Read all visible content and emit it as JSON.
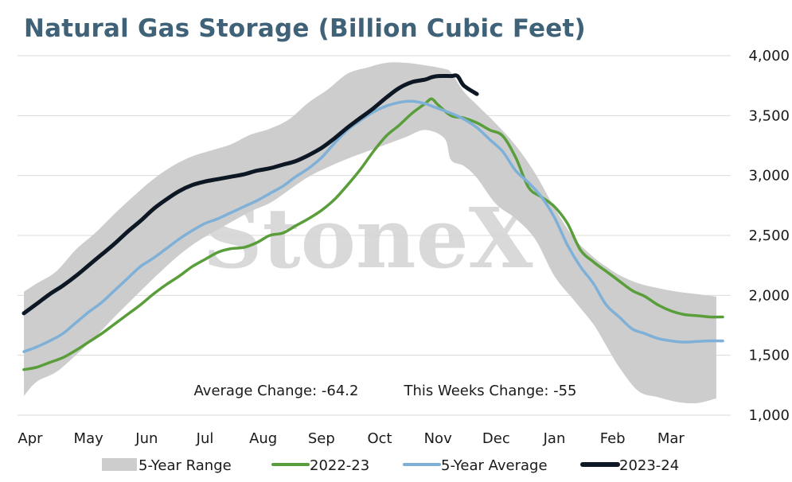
{
  "chart_data": {
    "type": "line",
    "title": "Natural Gas Storage (Billion Cubic Feet)",
    "x_tick_labels": [
      "Apr",
      "May",
      "Jun",
      "Jul",
      "Aug",
      "Sep",
      "Oct",
      "Nov",
      "Dec",
      "Jan",
      "Feb",
      "Mar"
    ],
    "x_tick_weeks": [
      0,
      9,
      18,
      27,
      36,
      45,
      54,
      63,
      72,
      81,
      90,
      99
    ],
    "num_weeks": 109,
    "ylim": [
      1000,
      4000
    ],
    "y_ticks": [
      1000,
      1500,
      2000,
      2500,
      3000,
      3500,
      4000
    ],
    "y_tick_labels": [
      "1,000",
      "1,500",
      "2,000",
      "2,500",
      "3,000",
      "3,500",
      "4,000"
    ],
    "grid": true,
    "y_axis_side": "right",
    "legend_position": "bottom",
    "watermark": "StoneX",
    "annotations": [
      {
        "text": "Average Change: -64.2"
      },
      {
        "text": "This Weeks Change: -55"
      }
    ],
    "series": [
      {
        "name": "5-Year Range",
        "kind": "band",
        "color": "#cdcdcd",
        "x": [
          0,
          2,
          5,
          8,
          11,
          14,
          17,
          20,
          23,
          26,
          29,
          32,
          35,
          38,
          41,
          44,
          47,
          50,
          53,
          56,
          59,
          62,
          65,
          66,
          68,
          70,
          73,
          76,
          79,
          82,
          85,
          88,
          90,
          92,
          95,
          98,
          101,
          104,
          107
        ],
        "upper": [
          2030,
          2100,
          2200,
          2380,
          2520,
          2680,
          2830,
          2970,
          3080,
          3160,
          3210,
          3260,
          3340,
          3390,
          3470,
          3610,
          3720,
          3850,
          3900,
          3940,
          3940,
          3920,
          3890,
          3860,
          3700,
          3590,
          3430,
          3250,
          3020,
          2730,
          2480,
          2320,
          2240,
          2170,
          2100,
          2060,
          2030,
          2010,
          1990
        ],
        "lower": [
          1160,
          1280,
          1360,
          1500,
          1650,
          1820,
          1980,
          2140,
          2290,
          2420,
          2520,
          2610,
          2700,
          2770,
          2880,
          2990,
          3070,
          3140,
          3200,
          3260,
          3320,
          3380,
          3310,
          3130,
          3080,
          2980,
          2760,
          2640,
          2470,
          2160,
          1960,
          1760,
          1580,
          1400,
          1200,
          1150,
          1110,
          1100,
          1140
        ]
      },
      {
        "name": "2022-23",
        "kind": "line",
        "color": "#5a9e3c",
        "x": [
          0,
          2,
          4,
          6,
          8,
          10,
          12,
          14,
          16,
          18,
          20,
          22,
          24,
          26,
          28,
          30,
          32,
          34,
          36,
          38,
          40,
          42,
          44,
          46,
          48,
          50,
          52,
          54,
          56,
          58,
          60,
          62,
          63,
          64,
          66,
          68,
          70,
          72,
          74,
          76,
          78,
          80,
          82,
          84,
          86,
          88,
          90,
          92,
          94,
          96,
          98,
          100,
          102,
          104,
          106,
          108
        ],
        "values": [
          1380,
          1400,
          1440,
          1480,
          1540,
          1610,
          1680,
          1760,
          1840,
          1920,
          2010,
          2090,
          2160,
          2240,
          2300,
          2360,
          2390,
          2400,
          2440,
          2500,
          2520,
          2580,
          2640,
          2710,
          2800,
          2920,
          3050,
          3200,
          3330,
          3420,
          3520,
          3600,
          3640,
          3590,
          3500,
          3480,
          3440,
          3380,
          3330,
          3150,
          2900,
          2820,
          2740,
          2600,
          2380,
          2280,
          2200,
          2120,
          2040,
          1990,
          1920,
          1870,
          1840,
          1830,
          1820,
          1820
        ]
      },
      {
        "name": "5-Year Average",
        "kind": "line",
        "color": "#7eb0d8",
        "x": [
          0,
          2,
          4,
          6,
          8,
          10,
          12,
          14,
          16,
          18,
          20,
          22,
          24,
          26,
          28,
          30,
          32,
          34,
          36,
          38,
          40,
          42,
          44,
          46,
          48,
          50,
          52,
          54,
          56,
          58,
          60,
          62,
          63,
          64,
          66,
          68,
          70,
          72,
          74,
          76,
          78,
          80,
          82,
          84,
          86,
          88,
          90,
          92,
          94,
          96,
          98,
          100,
          102,
          104,
          106,
          108
        ],
        "values": [
          1530,
          1570,
          1620,
          1680,
          1770,
          1860,
          1940,
          2040,
          2140,
          2240,
          2310,
          2390,
          2470,
          2540,
          2600,
          2640,
          2690,
          2740,
          2790,
          2850,
          2910,
          2990,
          3060,
          3150,
          3270,
          3380,
          3460,
          3530,
          3580,
          3610,
          3620,
          3600,
          3580,
          3560,
          3520,
          3470,
          3400,
          3300,
          3200,
          3040,
          2940,
          2820,
          2650,
          2420,
          2240,
          2100,
          1920,
          1820,
          1720,
          1680,
          1640,
          1620,
          1610,
          1615,
          1620,
          1620
        ]
      },
      {
        "name": "2023-24",
        "kind": "line",
        "color": "#0d1824",
        "x": [
          0,
          2,
          4,
          6,
          8,
          10,
          12,
          14,
          16,
          18,
          20,
          22,
          24,
          26,
          28,
          30,
          32,
          34,
          36,
          38,
          40,
          42,
          44,
          46,
          48,
          50,
          52,
          54,
          56,
          58,
          60,
          62,
          63,
          64,
          66,
          67,
          68,
          70
        ],
        "values": [
          1850,
          1930,
          2010,
          2080,
          2160,
          2250,
          2340,
          2430,
          2530,
          2620,
          2720,
          2800,
          2870,
          2920,
          2950,
          2970,
          2990,
          3010,
          3040,
          3060,
          3090,
          3120,
          3170,
          3230,
          3310,
          3400,
          3480,
          3560,
          3650,
          3730,
          3780,
          3800,
          3820,
          3830,
          3830,
          3830,
          3750,
          3680
        ]
      }
    ]
  }
}
